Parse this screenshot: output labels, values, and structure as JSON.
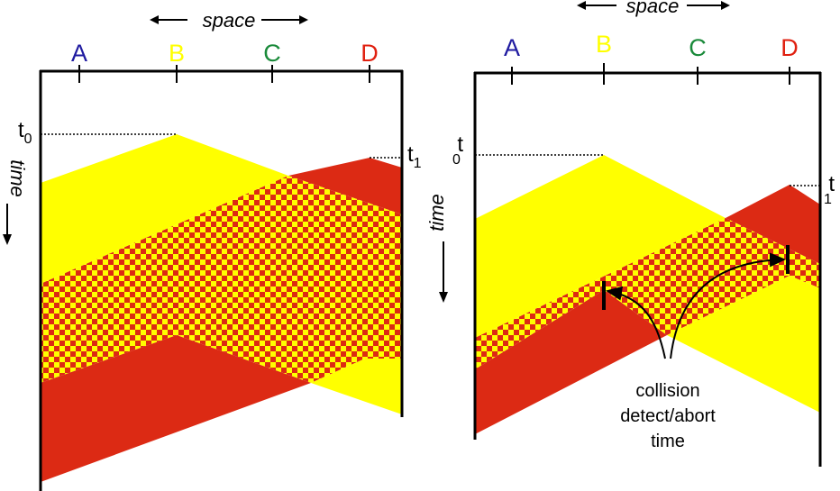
{
  "space_label": "space",
  "time_label": "time",
  "nodes": [
    {
      "name": "A",
      "color": "#1f1aa0"
    },
    {
      "name": "B",
      "color": "#ffff00"
    },
    {
      "name": "C",
      "color": "#1a8a3a"
    },
    {
      "name": "D",
      "color": "#e02010"
    }
  ],
  "colors": {
    "yellow": "#ffff00",
    "red": "#dc2a14",
    "line": "#000000"
  },
  "left_panel": {
    "t0": {
      "main": "t",
      "sub": "0"
    },
    "t1": {
      "main": "t",
      "sub": "1"
    }
  },
  "right_panel": {
    "t0": {
      "main": "t",
      "sub": "0"
    },
    "t1": {
      "main": "t",
      "sub": "1"
    },
    "annotation_lines": [
      "collision",
      "detect/abort",
      "time"
    ]
  }
}
